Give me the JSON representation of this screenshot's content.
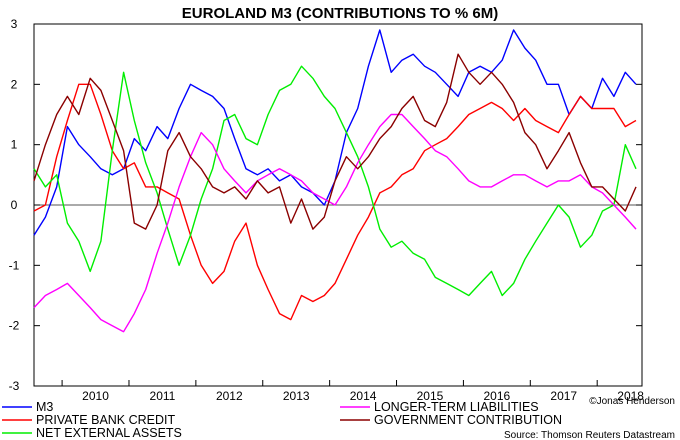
{
  "chart_data": {
    "type": "line",
    "title": "EUROLAND M3 (CONTRIBUTIONS TO % 6M)",
    "xlabel": "",
    "ylabel": "",
    "x_ticks": [
      "2010",
      "2011",
      "2012",
      "2013",
      "2014",
      "2015",
      "2016",
      "2017",
      "2018"
    ],
    "xlim": [
      2009.58,
      2018.67
    ],
    "y_ticks": [
      "3",
      "2",
      "1",
      "0",
      "-1",
      "-2",
      "-3"
    ],
    "ylim": [
      -3,
      3
    ],
    "grid": false,
    "legend_position": "bottom",
    "series": [
      {
        "name": "M3",
        "color": "#0000ff",
        "points": [
          [
            2009.58,
            -0.5
          ],
          [
            2009.75,
            -0.2
          ],
          [
            2009.92,
            0.3
          ],
          [
            2010.08,
            1.3
          ],
          [
            2010.25,
            1.0
          ],
          [
            2010.42,
            0.8
          ],
          [
            2010.58,
            0.6
          ],
          [
            2010.75,
            0.5
          ],
          [
            2010.92,
            0.6
          ],
          [
            2011.08,
            1.1
          ],
          [
            2011.25,
            0.9
          ],
          [
            2011.42,
            1.3
          ],
          [
            2011.58,
            1.1
          ],
          [
            2011.75,
            1.6
          ],
          [
            2011.92,
            2.0
          ],
          [
            2012.08,
            1.9
          ],
          [
            2012.25,
            1.8
          ],
          [
            2012.42,
            1.6
          ],
          [
            2012.58,
            1.1
          ],
          [
            2012.75,
            0.6
          ],
          [
            2012.92,
            0.5
          ],
          [
            2013.08,
            0.6
          ],
          [
            2013.25,
            0.4
          ],
          [
            2013.42,
            0.5
          ],
          [
            2013.58,
            0.3
          ],
          [
            2013.75,
            0.2
          ],
          [
            2013.92,
            0.0
          ],
          [
            2014.08,
            0.4
          ],
          [
            2014.25,
            1.2
          ],
          [
            2014.42,
            1.6
          ],
          [
            2014.58,
            2.3
          ],
          [
            2014.75,
            2.9
          ],
          [
            2014.92,
            2.2
          ],
          [
            2015.08,
            2.4
          ],
          [
            2015.25,
            2.5
          ],
          [
            2015.42,
            2.3
          ],
          [
            2015.58,
            2.2
          ],
          [
            2015.75,
            2.0
          ],
          [
            2015.92,
            1.8
          ],
          [
            2016.08,
            2.2
          ],
          [
            2016.25,
            2.3
          ],
          [
            2016.42,
            2.2
          ],
          [
            2016.58,
            2.4
          ],
          [
            2016.75,
            2.9
          ],
          [
            2016.92,
            2.6
          ],
          [
            2017.08,
            2.4
          ],
          [
            2017.25,
            2.0
          ],
          [
            2017.42,
            2.0
          ],
          [
            2017.58,
            1.5
          ],
          [
            2017.75,
            1.8
          ],
          [
            2017.92,
            1.6
          ],
          [
            2018.08,
            2.1
          ],
          [
            2018.25,
            1.8
          ],
          [
            2018.42,
            2.2
          ],
          [
            2018.58,
            2.0
          ]
        ]
      },
      {
        "name": "PRIVATE BANK CREDIT",
        "color": "#ff0000",
        "points": [
          [
            2009.58,
            -0.1
          ],
          [
            2009.75,
            0.0
          ],
          [
            2009.92,
            0.8
          ],
          [
            2010.08,
            1.4
          ],
          [
            2010.25,
            2.0
          ],
          [
            2010.42,
            2.0
          ],
          [
            2010.58,
            1.5
          ],
          [
            2010.75,
            0.9
          ],
          [
            2010.92,
            0.6
          ],
          [
            2011.08,
            0.7
          ],
          [
            2011.25,
            0.3
          ],
          [
            2011.42,
            0.3
          ],
          [
            2011.58,
            0.2
          ],
          [
            2011.75,
            0.1
          ],
          [
            2011.92,
            -0.5
          ],
          [
            2012.08,
            -1.0
          ],
          [
            2012.25,
            -1.3
          ],
          [
            2012.42,
            -1.1
          ],
          [
            2012.58,
            -0.6
          ],
          [
            2012.75,
            -0.3
          ],
          [
            2012.92,
            -1.0
          ],
          [
            2013.08,
            -1.4
          ],
          [
            2013.25,
            -1.8
          ],
          [
            2013.42,
            -1.9
          ],
          [
            2013.58,
            -1.5
          ],
          [
            2013.75,
            -1.6
          ],
          [
            2013.92,
            -1.5
          ],
          [
            2014.08,
            -1.3
          ],
          [
            2014.25,
            -0.9
          ],
          [
            2014.42,
            -0.5
          ],
          [
            2014.58,
            -0.2
          ],
          [
            2014.75,
            0.2
          ],
          [
            2014.92,
            0.3
          ],
          [
            2015.08,
            0.5
          ],
          [
            2015.25,
            0.6
          ],
          [
            2015.42,
            0.9
          ],
          [
            2015.58,
            1.0
          ],
          [
            2015.75,
            1.1
          ],
          [
            2015.92,
            1.3
          ],
          [
            2016.08,
            1.5
          ],
          [
            2016.25,
            1.6
          ],
          [
            2016.42,
            1.7
          ],
          [
            2016.58,
            1.6
          ],
          [
            2016.75,
            1.4
          ],
          [
            2016.92,
            1.6
          ],
          [
            2017.08,
            1.4
          ],
          [
            2017.25,
            1.3
          ],
          [
            2017.42,
            1.2
          ],
          [
            2017.58,
            1.5
          ],
          [
            2017.75,
            1.8
          ],
          [
            2017.92,
            1.6
          ],
          [
            2018.08,
            1.6
          ],
          [
            2018.25,
            1.6
          ],
          [
            2018.42,
            1.3
          ],
          [
            2018.58,
            1.4
          ]
        ]
      },
      {
        "name": "NET EXTERNAL ASSETS",
        "color": "#00ee00",
        "points": [
          [
            2009.58,
            0.6
          ],
          [
            2009.75,
            0.3
          ],
          [
            2009.92,
            0.5
          ],
          [
            2010.08,
            -0.3
          ],
          [
            2010.25,
            -0.6
          ],
          [
            2010.42,
            -1.1
          ],
          [
            2010.58,
            -0.6
          ],
          [
            2010.75,
            0.9
          ],
          [
            2010.92,
            2.2
          ],
          [
            2011.08,
            1.4
          ],
          [
            2011.25,
            0.7
          ],
          [
            2011.42,
            0.2
          ],
          [
            2011.58,
            -0.4
          ],
          [
            2011.75,
            -1.0
          ],
          [
            2011.92,
            -0.5
          ],
          [
            2012.08,
            0.1
          ],
          [
            2012.25,
            0.6
          ],
          [
            2012.42,
            1.4
          ],
          [
            2012.58,
            1.5
          ],
          [
            2012.75,
            1.1
          ],
          [
            2012.92,
            1.0
          ],
          [
            2013.08,
            1.5
          ],
          [
            2013.25,
            1.9
          ],
          [
            2013.42,
            2.0
          ],
          [
            2013.58,
            2.3
          ],
          [
            2013.75,
            2.1
          ],
          [
            2013.92,
            1.8
          ],
          [
            2014.08,
            1.6
          ],
          [
            2014.25,
            1.2
          ],
          [
            2014.42,
            0.8
          ],
          [
            2014.58,
            0.3
          ],
          [
            2014.75,
            -0.4
          ],
          [
            2014.92,
            -0.7
          ],
          [
            2015.08,
            -0.6
          ],
          [
            2015.25,
            -0.8
          ],
          [
            2015.42,
            -0.9
          ],
          [
            2015.58,
            -1.2
          ],
          [
            2015.75,
            -1.3
          ],
          [
            2015.92,
            -1.4
          ],
          [
            2016.08,
            -1.5
          ],
          [
            2016.25,
            -1.3
          ],
          [
            2016.42,
            -1.1
          ],
          [
            2016.58,
            -1.5
          ],
          [
            2016.75,
            -1.3
          ],
          [
            2016.92,
            -0.9
          ],
          [
            2017.08,
            -0.6
          ],
          [
            2017.25,
            -0.3
          ],
          [
            2017.42,
            0.0
          ],
          [
            2017.58,
            -0.2
          ],
          [
            2017.75,
            -0.7
          ],
          [
            2017.92,
            -0.5
          ],
          [
            2018.08,
            -0.1
          ],
          [
            2018.25,
            0.0
          ],
          [
            2018.42,
            1.0
          ],
          [
            2018.58,
            0.6
          ]
        ]
      },
      {
        "name": "LONGER-TERM LIABILITIES",
        "color": "#ff00ff",
        "points": [
          [
            2009.58,
            -1.7
          ],
          [
            2009.75,
            -1.5
          ],
          [
            2009.92,
            -1.4
          ],
          [
            2010.08,
            -1.3
          ],
          [
            2010.25,
            -1.5
          ],
          [
            2010.42,
            -1.7
          ],
          [
            2010.58,
            -1.9
          ],
          [
            2010.75,
            -2.0
          ],
          [
            2010.92,
            -2.1
          ],
          [
            2011.08,
            -1.8
          ],
          [
            2011.25,
            -1.4
          ],
          [
            2011.42,
            -0.8
          ],
          [
            2011.58,
            -0.3
          ],
          [
            2011.75,
            0.3
          ],
          [
            2011.92,
            0.8
          ],
          [
            2012.08,
            1.2
          ],
          [
            2012.25,
            1.0
          ],
          [
            2012.42,
            0.6
          ],
          [
            2012.58,
            0.4
          ],
          [
            2012.75,
            0.2
          ],
          [
            2012.92,
            0.4
          ],
          [
            2013.08,
            0.5
          ],
          [
            2013.25,
            0.6
          ],
          [
            2013.42,
            0.5
          ],
          [
            2013.58,
            0.4
          ],
          [
            2013.75,
            0.2
          ],
          [
            2013.92,
            0.1
          ],
          [
            2014.08,
            0.0
          ],
          [
            2014.25,
            0.3
          ],
          [
            2014.42,
            0.7
          ],
          [
            2014.58,
            1.0
          ],
          [
            2014.75,
            1.3
          ],
          [
            2014.92,
            1.5
          ],
          [
            2015.08,
            1.5
          ],
          [
            2015.25,
            1.3
          ],
          [
            2015.42,
            1.1
          ],
          [
            2015.58,
            0.9
          ],
          [
            2015.75,
            0.8
          ],
          [
            2015.92,
            0.6
          ],
          [
            2016.08,
            0.4
          ],
          [
            2016.25,
            0.3
          ],
          [
            2016.42,
            0.3
          ],
          [
            2016.58,
            0.4
          ],
          [
            2016.75,
            0.5
          ],
          [
            2016.92,
            0.5
          ],
          [
            2017.08,
            0.4
          ],
          [
            2017.25,
            0.3
          ],
          [
            2017.42,
            0.4
          ],
          [
            2017.58,
            0.4
          ],
          [
            2017.75,
            0.5
          ],
          [
            2017.92,
            0.3
          ],
          [
            2018.08,
            0.2
          ],
          [
            2018.25,
            0.0
          ],
          [
            2018.42,
            -0.2
          ],
          [
            2018.58,
            -0.4
          ]
        ]
      },
      {
        "name": "GOVERNMENT CONTRIBUTION",
        "color": "#8b0000",
        "points": [
          [
            2009.58,
            0.4
          ],
          [
            2009.75,
            1.0
          ],
          [
            2009.92,
            1.5
          ],
          [
            2010.08,
            1.8
          ],
          [
            2010.25,
            1.5
          ],
          [
            2010.42,
            2.1
          ],
          [
            2010.58,
            1.9
          ],
          [
            2010.75,
            1.4
          ],
          [
            2010.92,
            0.9
          ],
          [
            2011.08,
            -0.3
          ],
          [
            2011.25,
            -0.4
          ],
          [
            2011.42,
            0.0
          ],
          [
            2011.58,
            0.9
          ],
          [
            2011.75,
            1.2
          ],
          [
            2011.92,
            0.8
          ],
          [
            2012.08,
            0.6
          ],
          [
            2012.25,
            0.3
          ],
          [
            2012.42,
            0.2
          ],
          [
            2012.58,
            0.3
          ],
          [
            2012.75,
            0.1
          ],
          [
            2012.92,
            0.4
          ],
          [
            2013.08,
            0.2
          ],
          [
            2013.25,
            0.3
          ],
          [
            2013.42,
            -0.3
          ],
          [
            2013.58,
            0.1
          ],
          [
            2013.75,
            -0.4
          ],
          [
            2013.92,
            -0.2
          ],
          [
            2014.08,
            0.4
          ],
          [
            2014.25,
            0.8
          ],
          [
            2014.42,
            0.6
          ],
          [
            2014.58,
            0.8
          ],
          [
            2014.75,
            1.1
          ],
          [
            2014.92,
            1.3
          ],
          [
            2015.08,
            1.6
          ],
          [
            2015.25,
            1.8
          ],
          [
            2015.42,
            1.4
          ],
          [
            2015.58,
            1.3
          ],
          [
            2015.75,
            1.7
          ],
          [
            2015.92,
            2.5
          ],
          [
            2016.08,
            2.2
          ],
          [
            2016.25,
            2.0
          ],
          [
            2016.42,
            2.2
          ],
          [
            2016.58,
            2.0
          ],
          [
            2016.75,
            1.7
          ],
          [
            2016.92,
            1.2
          ],
          [
            2017.08,
            1.0
          ],
          [
            2017.25,
            0.6
          ],
          [
            2017.42,
            0.9
          ],
          [
            2017.58,
            1.2
          ],
          [
            2017.75,
            0.7
          ],
          [
            2017.92,
            0.3
          ],
          [
            2018.08,
            0.3
          ],
          [
            2018.25,
            0.1
          ],
          [
            2018.42,
            -0.1
          ],
          [
            2018.58,
            0.3
          ]
        ]
      }
    ]
  },
  "footer": {
    "copyright": "©Jonas Henderson",
    "source": "Source: Thomson Reuters Datastream"
  }
}
